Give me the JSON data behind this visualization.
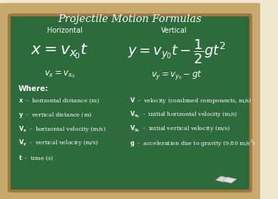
{
  "title": "Projectile Motion Formulas",
  "board_bg": "#2d6b3c",
  "board_border_outer": "#c8a96e",
  "board_border_inner": "#a07840",
  "text_color": "#ffffff",
  "chalk_color": "#e8e8e8",
  "horizontal_label": "Horizontal",
  "vertical_label": "Vertical",
  "horiz_formula1": "$x = v_{x_0}t$",
  "horiz_formula2": "$v_x = v_{x_0}$",
  "vert_formula1": "$y = v_{y_0}t - \\dfrac{1}{2}gt^2$",
  "vert_formula2": "$v_y = v_{y_0} - gt$",
  "where_title": "Where:",
  "legend_left": [
    "$\\mathbf{x}$  -  horizontal distance (m)",
    "$\\mathbf{y}$  -  vertical distance (m)",
    "$\\mathbf{V_x}$  -  horizontal velocity (m/s)",
    "$\\mathbf{V_y}$  -  vertical velocity (m/s)",
    "$\\mathbf{t}$  -  time (s)"
  ],
  "legend_right": [
    "$\\mathbf{V}$  -  velocity (combined components, m/s)",
    "$\\mathbf{V_{x_0}}$  -  initial horizontal velocity (m/s)",
    "$\\mathbf{V_{y_0}}$  -  initial vertical velocity (m/s)",
    "$\\mathbf{g}$  -  acceleration due to gravity (9.80 m/s$^2$)"
  ]
}
